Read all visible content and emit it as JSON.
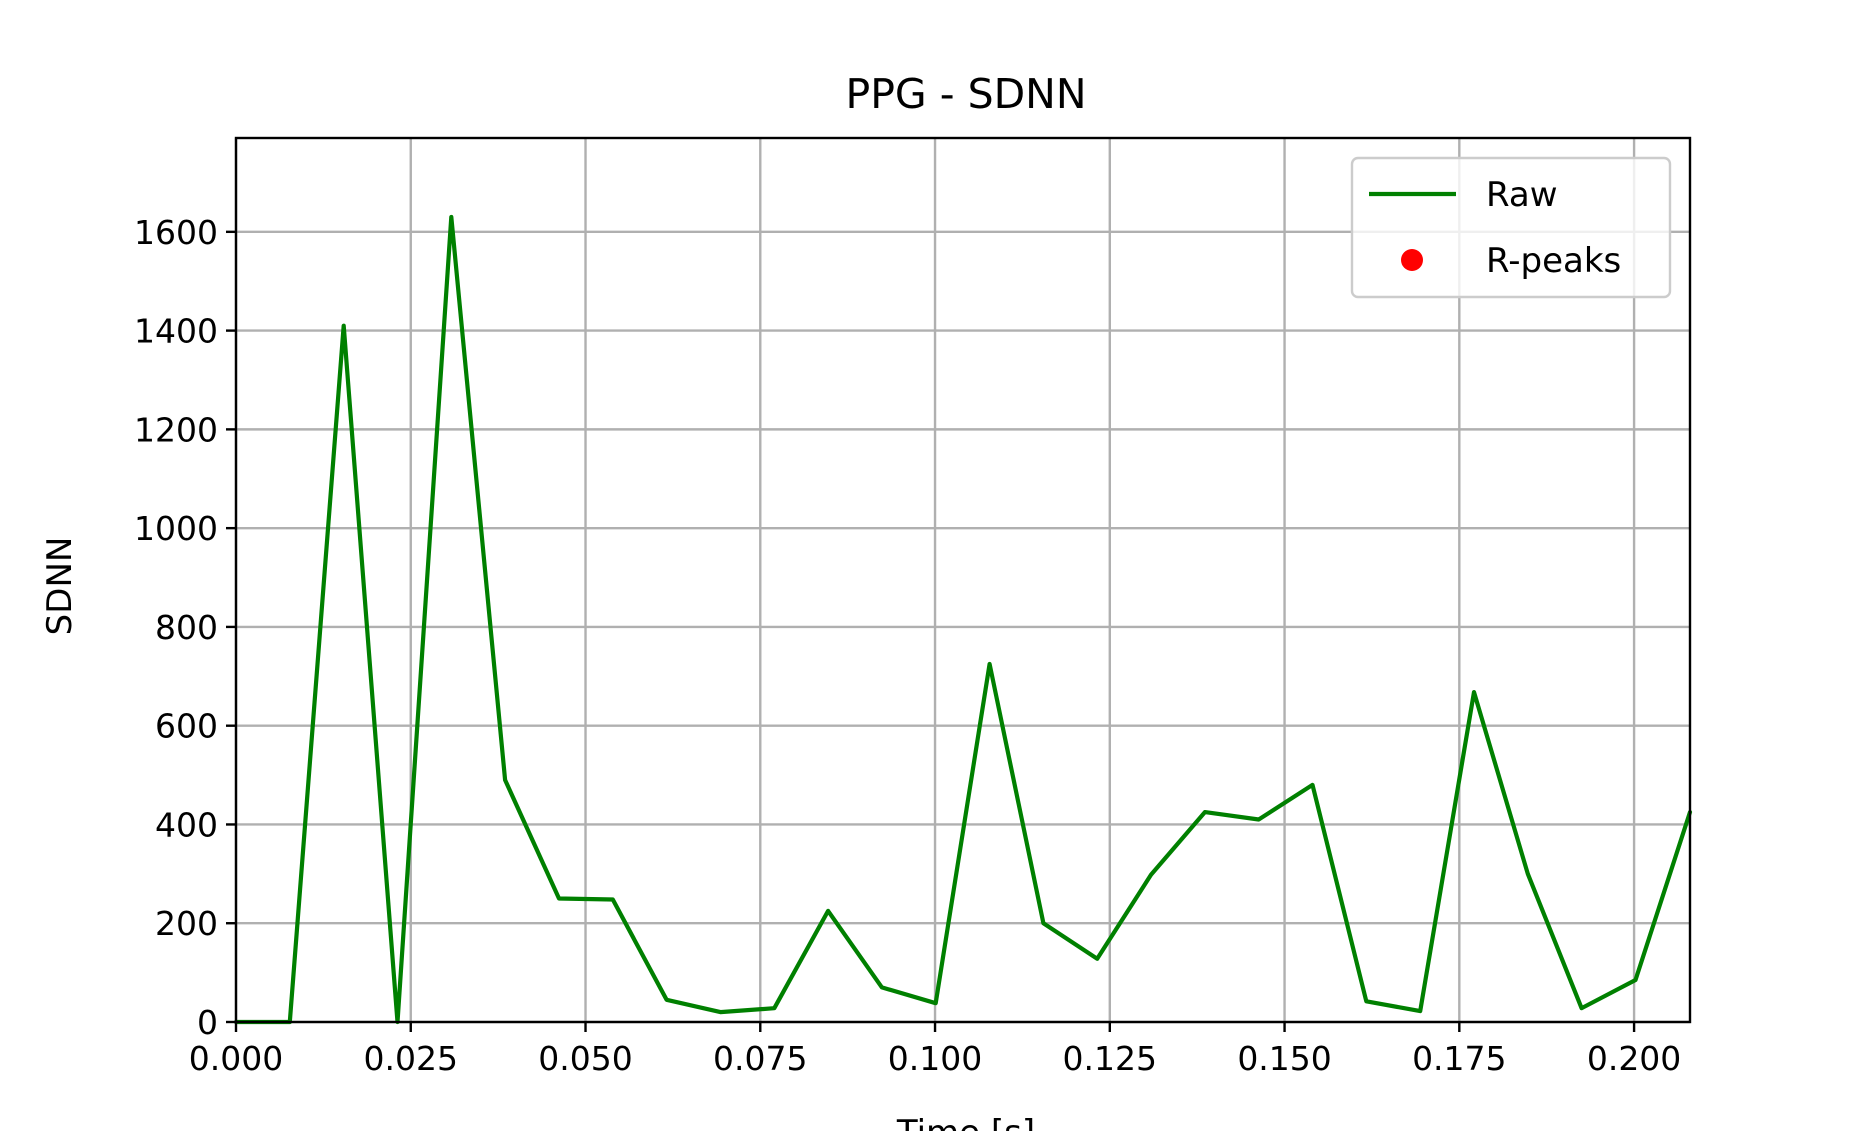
{
  "chart_data": {
    "type": "line",
    "title": "PPG - SDNN",
    "xlabel": "Time [s]",
    "ylabel": "SDNN",
    "xlim": [
      0.0,
      0.208
    ],
    "ylim": [
      0,
      1790
    ],
    "x_ticks": [
      0.0,
      0.025,
      0.05,
      0.075,
      0.1,
      0.125,
      0.15,
      0.175,
      0.2
    ],
    "x_tick_labels": [
      "0.000",
      "0.025",
      "0.050",
      "0.075",
      "0.100",
      "0.125",
      "0.150",
      "0.175",
      "0.200"
    ],
    "y_ticks": [
      0,
      200,
      400,
      600,
      800,
      1000,
      1200,
      1400,
      1600
    ],
    "y_tick_labels": [
      "0",
      "200",
      "400",
      "600",
      "800",
      "1000",
      "1200",
      "1400",
      "1600"
    ],
    "grid": true,
    "legend_position": "top-right",
    "series": [
      {
        "name": "Raw",
        "kind": "line",
        "color": "#008000",
        "x": [
          0.0,
          0.0077,
          0.0154,
          0.0231,
          0.0308,
          0.0385,
          0.0462,
          0.0539,
          0.0616,
          0.0693,
          0.077,
          0.0847,
          0.0924,
          0.1001,
          0.1078,
          0.1155,
          0.1232,
          0.1309,
          0.1386,
          0.1463,
          0.154,
          0.1617,
          0.1694,
          0.1771,
          0.1848,
          0.1925,
          0.2002,
          0.208
        ],
        "y": [
          0,
          0,
          1410,
          0,
          1630,
          490,
          250,
          248,
          45,
          20,
          28,
          225,
          70,
          38,
          725,
          200,
          128,
          298,
          425,
          410,
          480,
          42,
          22,
          668,
          300,
          28,
          85,
          425
        ]
      },
      {
        "name": "R-peaks",
        "kind": "scatter",
        "color": "#ff0000",
        "x": [],
        "y": []
      }
    ]
  }
}
